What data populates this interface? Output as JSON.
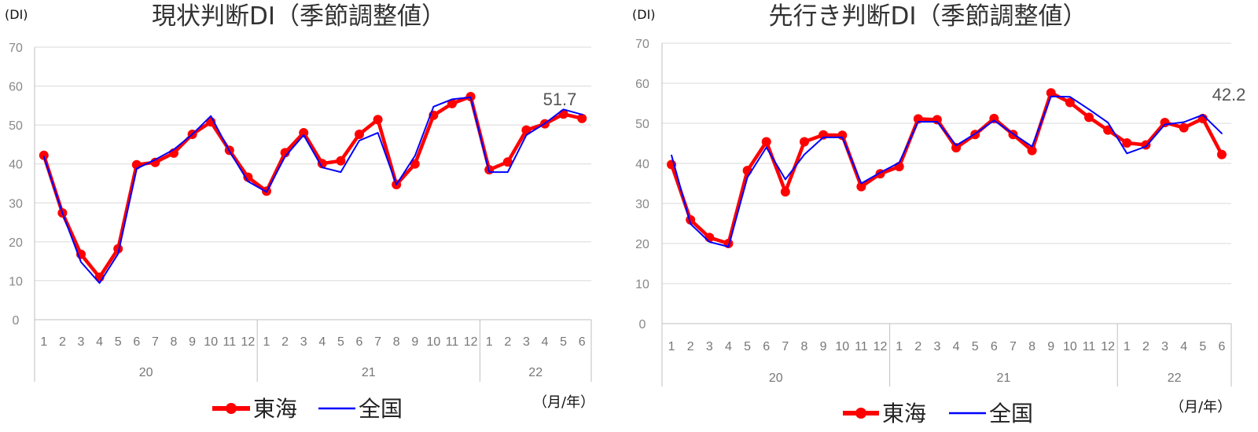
{
  "chart_data": [
    {
      "type": "line",
      "title": "現状判断DI（季節調整値）",
      "ylabel": "(DI)",
      "unit_note": "（月/年）",
      "ylim": [
        0,
        70
      ],
      "yticks": [
        "0",
        "10",
        "20",
        "30",
        "40",
        "50",
        "60",
        "70"
      ],
      "months": [
        "1",
        "2",
        "3",
        "4",
        "5",
        "6",
        "7",
        "8",
        "9",
        "10",
        "11",
        "12",
        "1",
        "2",
        "3",
        "4",
        "5",
        "6",
        "7",
        "8",
        "9",
        "10",
        "11",
        "12",
        "1",
        "2",
        "3",
        "4",
        "5",
        "6"
      ],
      "years": [
        {
          "label": "20",
          "count": 12
        },
        {
          "label": "21",
          "count": 12
        },
        {
          "label": "22",
          "count": 6
        }
      ],
      "grid": "horizontal",
      "legend_position": "bottom",
      "series": [
        {
          "name": "東海",
          "color": "#ff0000",
          "markers": true,
          "values": [
            42.2,
            27.4,
            16.8,
            10.9,
            18.2,
            39.8,
            40.4,
            42.8,
            47.6,
            50.8,
            43.5,
            36.6,
            33.0,
            42.9,
            48.0,
            40.1,
            40.8,
            47.6,
            51.4,
            34.7,
            40.0,
            52.5,
            55.5,
            57.3,
            38.5,
            40.5,
            48.7,
            50.3,
            52.8,
            51.7
          ]
        },
        {
          "name": "全国",
          "color": "#0000ff",
          "markers": false,
          "values": [
            41.9,
            27.4,
            14.8,
            9.4,
            16.9,
            38.8,
            41.1,
            43.7,
            47.6,
            52.3,
            43.3,
            35.5,
            32.8,
            41.9,
            47.4,
            39.1,
            37.9,
            46.0,
            48.0,
            34.7,
            42.1,
            54.7,
            56.6,
            57.1,
            37.9,
            37.9,
            47.4,
            50.4,
            54.0,
            52.7
          ]
        }
      ],
      "end_label": "51.7"
    },
    {
      "type": "line",
      "title": "先行き判断DI（季節調整値）",
      "ylabel": "(DI)",
      "unit_note": "（月/年）",
      "ylim": [
        0,
        70
      ],
      "yticks": [
        "0",
        "10",
        "20",
        "30",
        "40",
        "50",
        "60",
        "70"
      ],
      "months": [
        "1",
        "2",
        "3",
        "4",
        "5",
        "6",
        "7",
        "8",
        "9",
        "10",
        "11",
        "12",
        "1",
        "2",
        "3",
        "4",
        "5",
        "6",
        "7",
        "8",
        "9",
        "10",
        "11",
        "12",
        "1",
        "2",
        "3",
        "4",
        "5",
        "6"
      ],
      "years": [
        {
          "label": "20",
          "count": 12
        },
        {
          "label": "21",
          "count": 12
        },
        {
          "label": "22",
          "count": 6
        }
      ],
      "grid": "horizontal",
      "legend_position": "bottom",
      "series": [
        {
          "name": "東海",
          "color": "#ff0000",
          "markers": true,
          "values": [
            39.7,
            25.9,
            21.5,
            20.0,
            38.2,
            45.4,
            32.9,
            45.4,
            47.1,
            47.0,
            34.2,
            37.4,
            39.2,
            51.1,
            50.9,
            43.9,
            47.2,
            51.2,
            47.2,
            43.2,
            57.6,
            55.2,
            51.5,
            48.3,
            45.1,
            44.6,
            50.2,
            48.9,
            51.2,
            42.2
          ]
        },
        {
          "name": "全国",
          "color": "#0000ff",
          "markers": false,
          "values": [
            42.0,
            24.9,
            20.4,
            19.2,
            36.5,
            44.0,
            36.0,
            42.2,
            46.5,
            46.5,
            35.0,
            37.7,
            40.2,
            50.4,
            50.4,
            44.5,
            47.4,
            50.7,
            47.4,
            44.2,
            56.7,
            56.6,
            53.5,
            50.2,
            42.5,
            44.2,
            49.7,
            50.3,
            52.1,
            47.5
          ]
        }
      ],
      "end_label": "42.2"
    }
  ]
}
